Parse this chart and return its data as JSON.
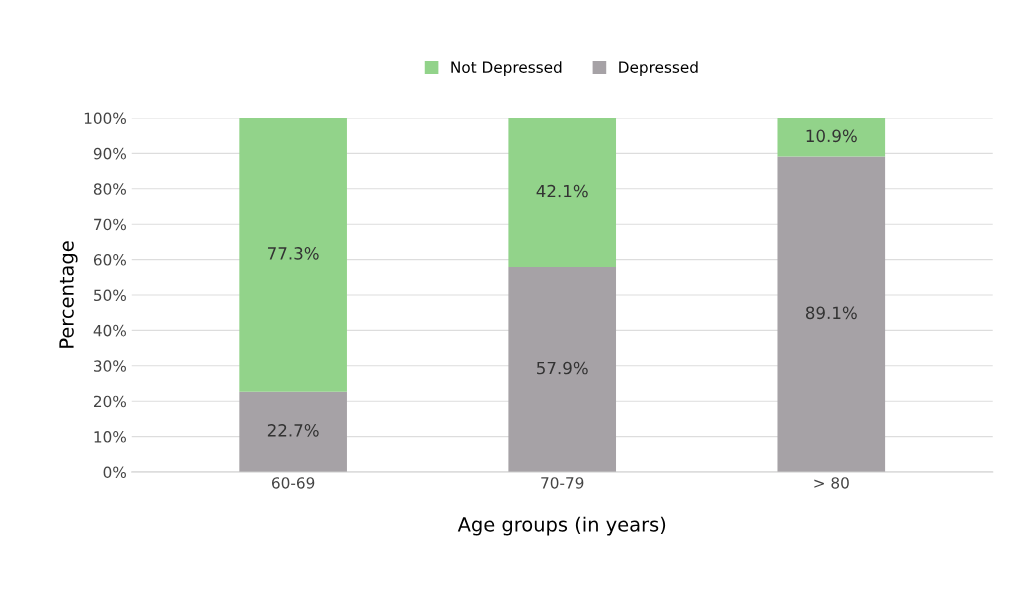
{
  "chart_data": {
    "type": "bar",
    "stacked": true,
    "xlabel": "Age groups (in years)",
    "ylabel": "Percentage",
    "categories": [
      "60-69",
      "70-79",
      "> 80"
    ],
    "series": [
      {
        "name": "Depressed",
        "color": "#a6a2a6",
        "values": [
          22.7,
          57.9,
          89.1
        ],
        "value_labels": [
          "22.7%",
          "57.9%",
          "89.1%"
        ]
      },
      {
        "name": "Not Depressed",
        "color": "#92d38a",
        "values": [
          77.3,
          42.1,
          10.9
        ],
        "value_labels": [
          "77.3%",
          "42.1%",
          "10.9%"
        ]
      }
    ],
    "ylim": [
      0,
      100
    ],
    "yticks": [
      {
        "value": 0,
        "label": "0%"
      },
      {
        "value": 10,
        "label": "10%"
      },
      {
        "value": 20,
        "label": "20%"
      },
      {
        "value": 30,
        "label": "30%"
      },
      {
        "value": 40,
        "label": "40%"
      },
      {
        "value": 50,
        "label": "50%"
      },
      {
        "value": 60,
        "label": "60%"
      },
      {
        "value": 70,
        "label": "70%"
      },
      {
        "value": 80,
        "label": "80%"
      },
      {
        "value": 90,
        "label": "90%"
      },
      {
        "value": 100,
        "label": "100%"
      }
    ],
    "grid": "y",
    "legend": "top"
  }
}
